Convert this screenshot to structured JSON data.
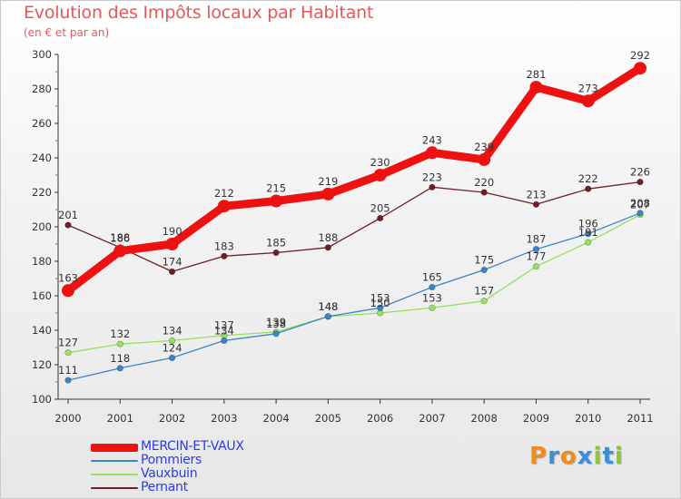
{
  "title": "Evolution des Impôts locaux par Habitant",
  "subtitle": "(en € et par an)",
  "brand": {
    "letters": [
      "P",
      "r",
      "o",
      "x",
      "i",
      "t",
      "i"
    ],
    "colors": [
      "#f28a1e",
      "#3a8fd8",
      "#f28a1e",
      "#3a8fd8",
      "#8cc63f",
      "#3a8fd8",
      "#8cc63f"
    ]
  },
  "chart_data": {
    "type": "line",
    "title": "Evolution des Impôts locaux par Habitant",
    "subtitle": "(en € et par an)",
    "xlabel": "",
    "ylabel": "",
    "x": [
      "2000",
      "2001",
      "2002",
      "2003",
      "2004",
      "2005",
      "2006",
      "2007",
      "2008",
      "2009",
      "2010",
      "2011"
    ],
    "ylim": [
      100,
      300
    ],
    "yticks": [
      100,
      120,
      140,
      160,
      180,
      200,
      220,
      240,
      260,
      280,
      300
    ],
    "grid": false,
    "legend": "bottom-left",
    "series": [
      {
        "name": "Pernant",
        "color": "#6e1f22",
        "values": [
          201,
          188,
          174,
          183,
          185,
          188,
          205,
          223,
          220,
          213,
          222,
          226
        ]
      },
      {
        "name": "Vauxbuin",
        "color": "#97e061",
        "values": [
          127,
          132,
          134,
          137,
          139,
          148,
          150,
          153,
          157,
          177,
          191,
          207
        ]
      },
      {
        "name": "Pommiers",
        "color": "#3c85c8",
        "values": [
          111,
          118,
          124,
          134,
          138,
          148,
          153,
          165,
          175,
          187,
          196,
          208
        ]
      },
      {
        "name": "MERCIN-ET-VAUX",
        "color": "#ee1111",
        "values": [
          163,
          186,
          190,
          212,
          215,
          219,
          230,
          243,
          239,
          281,
          273,
          292
        ]
      }
    ],
    "legend_order": [
      "MERCIN-ET-VAUX",
      "Pommiers",
      "Vauxbuin",
      "Pernant"
    ]
  }
}
